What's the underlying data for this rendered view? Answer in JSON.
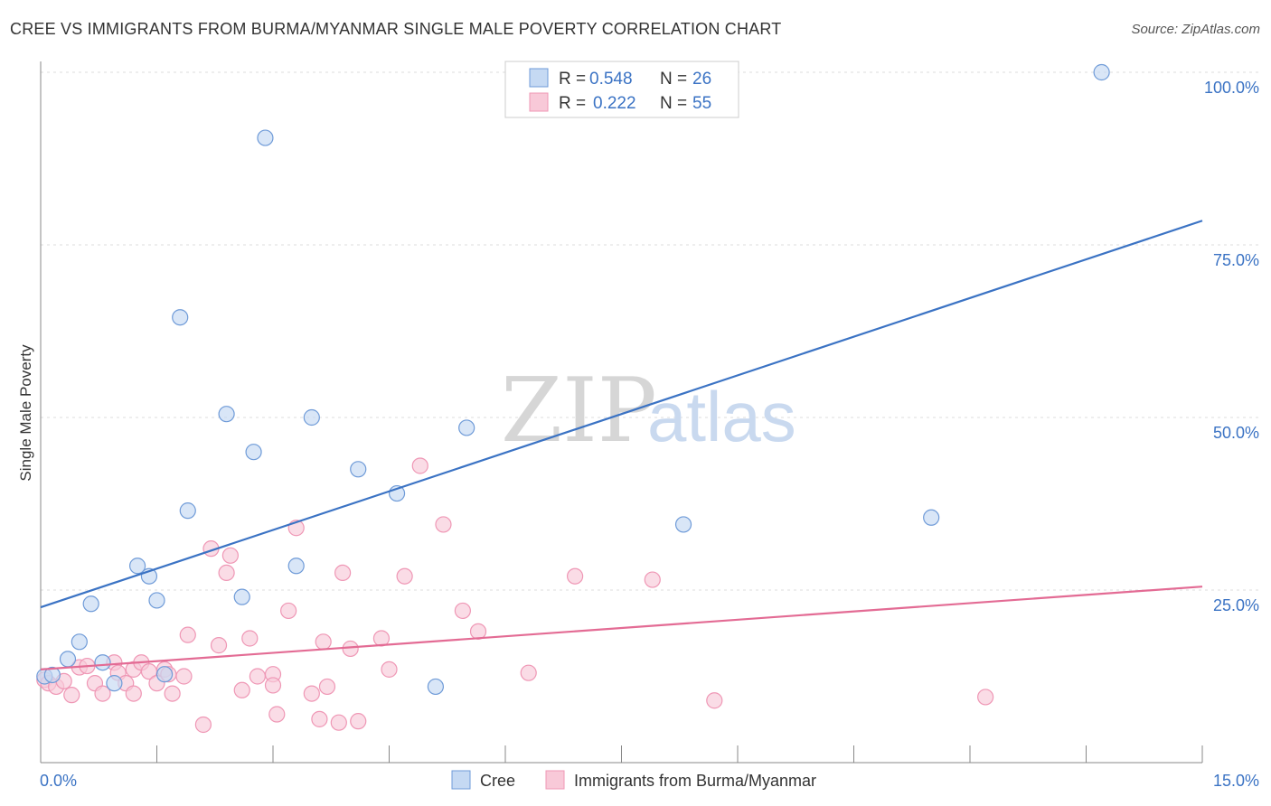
{
  "chart_data": {
    "type": "scatter",
    "title": "CREE VS IMMIGRANTS FROM BURMA/MYANMAR SINGLE MALE POVERTY CORRELATION CHART",
    "source": "Source: ZipAtlas.com",
    "ylabel": "Single Male Poverty",
    "xlabel": "",
    "xlim": [
      0,
      15
    ],
    "ylim": [
      0,
      100
    ],
    "x_tick_labels": [
      "0.0%",
      "15.0%"
    ],
    "y_ticks": [
      25,
      50,
      75,
      100
    ],
    "y_tick_labels": [
      "25.0%",
      "50.0%",
      "75.0%",
      "100.0%"
    ],
    "watermark": {
      "part1": "ZIP",
      "part2": "atlas"
    },
    "legend": [
      {
        "r_label": "R =",
        "r_value": "0.548",
        "n_label": "N =",
        "n_value": "26"
      },
      {
        "r_label": "R =",
        "r_value": "0.222",
        "n_label": "N =",
        "n_value": "55"
      }
    ],
    "series": [
      {
        "name": "Cree",
        "color": "#3b73c4",
        "fill": "#c5d9f3",
        "stroke": "#6f9bd8",
        "trend": {
          "x": [
            0,
            15
          ],
          "y": [
            22.5,
            78.5
          ]
        },
        "points": [
          [
            0.05,
            12.5
          ],
          [
            0.15,
            12.7
          ],
          [
            0.35,
            15.0
          ],
          [
            0.5,
            17.5
          ],
          [
            0.65,
            23.0
          ],
          [
            0.8,
            14.5
          ],
          [
            0.95,
            11.5
          ],
          [
            1.25,
            28.5
          ],
          [
            1.4,
            27.0
          ],
          [
            1.5,
            23.5
          ],
          [
            1.6,
            12.8
          ],
          [
            1.8,
            64.5
          ],
          [
            1.9,
            36.5
          ],
          [
            2.4,
            50.5
          ],
          [
            2.6,
            24.0
          ],
          [
            2.75,
            45.0
          ],
          [
            2.9,
            90.5
          ],
          [
            3.3,
            28.5
          ],
          [
            3.5,
            50.0
          ],
          [
            4.1,
            42.5
          ],
          [
            4.6,
            39.0
          ],
          [
            5.1,
            11.0
          ],
          [
            5.5,
            48.5
          ],
          [
            8.3,
            34.5
          ],
          [
            11.5,
            35.5
          ],
          [
            13.7,
            100.0
          ]
        ]
      },
      {
        "name": "Immigrants from Burma/Myanmar",
        "color": "#e36b94",
        "fill": "#f8c9d8",
        "stroke": "#ef97b5",
        "trend": {
          "x": [
            0,
            15
          ],
          "y": [
            13.5,
            25.5
          ]
        },
        "points": [
          [
            0.05,
            12.0
          ],
          [
            0.1,
            11.5
          ],
          [
            0.2,
            11.0
          ],
          [
            0.3,
            11.8
          ],
          [
            0.4,
            9.8
          ],
          [
            0.5,
            13.8
          ],
          [
            0.6,
            14.0
          ],
          [
            0.7,
            11.5
          ],
          [
            0.8,
            10.0
          ],
          [
            0.95,
            14.5
          ],
          [
            1.0,
            13.0
          ],
          [
            1.1,
            11.5
          ],
          [
            1.2,
            13.5
          ],
          [
            1.2,
            10.0
          ],
          [
            1.3,
            14.5
          ],
          [
            1.4,
            13.2
          ],
          [
            1.5,
            11.5
          ],
          [
            1.6,
            13.5
          ],
          [
            1.65,
            12.8
          ],
          [
            1.7,
            10.0
          ],
          [
            1.85,
            12.5
          ],
          [
            1.9,
            18.5
          ],
          [
            2.1,
            5.5
          ],
          [
            2.2,
            31.0
          ],
          [
            2.3,
            17.0
          ],
          [
            2.4,
            27.5
          ],
          [
            2.45,
            30.0
          ],
          [
            2.6,
            10.5
          ],
          [
            2.7,
            18.0
          ],
          [
            2.8,
            12.5
          ],
          [
            3.0,
            12.8
          ],
          [
            3.0,
            11.2
          ],
          [
            3.05,
            7.0
          ],
          [
            3.2,
            22.0
          ],
          [
            3.3,
            34.0
          ],
          [
            3.5,
            10.0
          ],
          [
            3.6,
            6.3
          ],
          [
            3.65,
            17.5
          ],
          [
            3.7,
            11.0
          ],
          [
            3.85,
            5.8
          ],
          [
            3.9,
            27.5
          ],
          [
            4.0,
            16.5
          ],
          [
            4.1,
            6.0
          ],
          [
            4.4,
            18.0
          ],
          [
            4.5,
            13.5
          ],
          [
            4.7,
            27.0
          ],
          [
            4.9,
            43.0
          ],
          [
            5.2,
            34.5
          ],
          [
            5.45,
            22.0
          ],
          [
            5.65,
            19.0
          ],
          [
            6.3,
            13.0
          ],
          [
            6.9,
            27.0
          ],
          [
            7.9,
            26.5
          ],
          [
            8.7,
            9.0
          ],
          [
            12.2,
            9.5
          ]
        ]
      }
    ]
  }
}
